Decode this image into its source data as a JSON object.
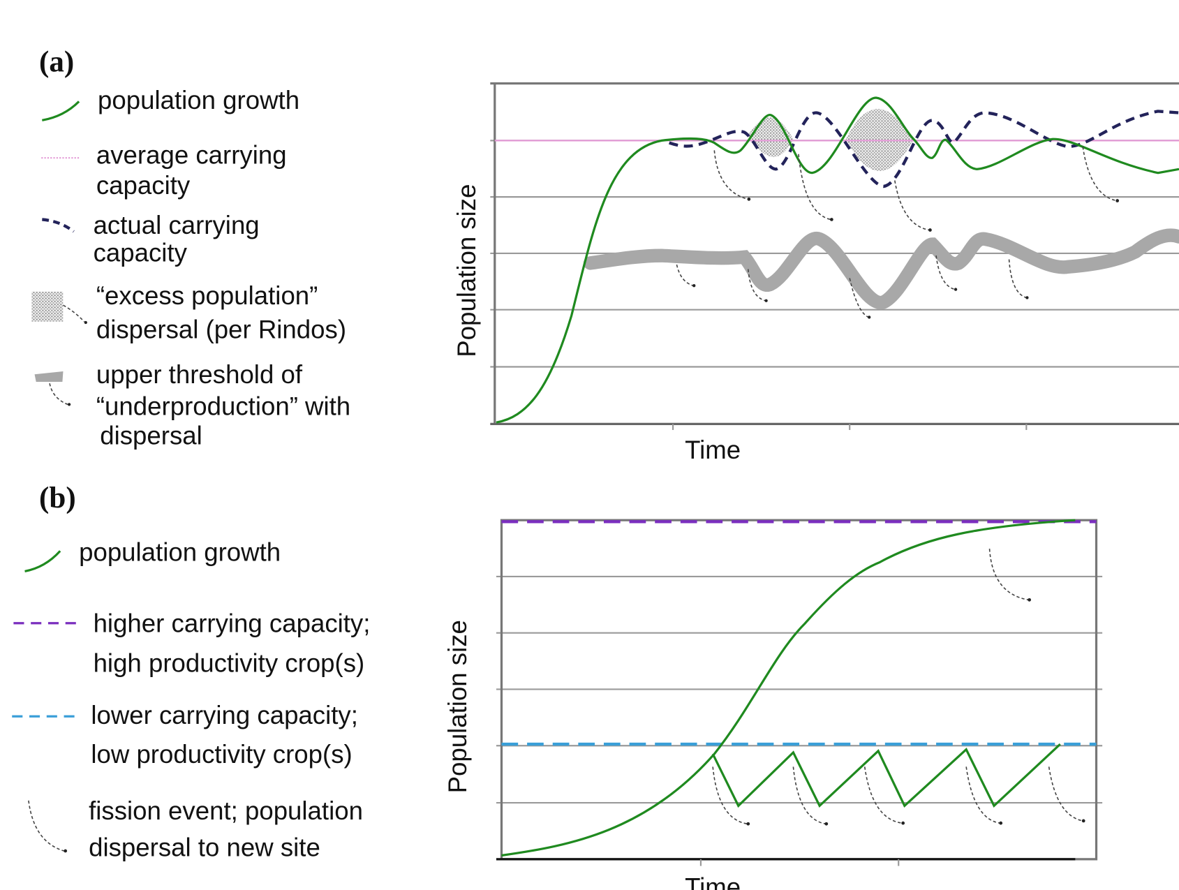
{
  "panel_a": {
    "label": "(a)",
    "legend": [
      {
        "icon": "green-line",
        "text": [
          "population growth"
        ]
      },
      {
        "icon": "pink-dotted-line",
        "text": [
          "average carrying",
          "capacity"
        ]
      },
      {
        "icon": "navy-dashed-line",
        "text": [
          "actual  carrying",
          "capacity"
        ]
      },
      {
        "icon": "stippled-area-with-arrow",
        "text": [
          "“excess population”",
          "dispersal (per Rindos)"
        ]
      },
      {
        "icon": "gray-thick-line-with-arrow",
        "text": [
          "upper threshold of",
          "“underproduction” with",
          "dispersal"
        ]
      }
    ],
    "y_axis_label": "Population size",
    "x_axis_label": "Time"
  },
  "panel_b": {
    "label": "(b)",
    "legend": [
      {
        "icon": "green-line",
        "text": [
          "population growth"
        ]
      },
      {
        "icon": "purple-dashed-line",
        "text": [
          "higher carrying capacity;",
          "high productivity crop(s)"
        ]
      },
      {
        "icon": "blue-dashed-line",
        "text": [
          "lower carrying capacity;",
          "low productivity crop(s)"
        ]
      },
      {
        "icon": "dotted-arrow",
        "text": [
          "fission event; population",
          "dispersal to new site"
        ]
      }
    ],
    "y_axis_label": "Population size",
    "x_axis_label": "Time"
  },
  "colors": {
    "population_growth": "#1f8a1f",
    "average_carrying_capacity": "#e39ad6",
    "actual_carrying_capacity": "#23235a",
    "underproduction_threshold": "#a8a8a8",
    "higher_carrying_capacity": "#7b2fbf",
    "lower_carrying_capacity": "#3a9fd8"
  }
}
